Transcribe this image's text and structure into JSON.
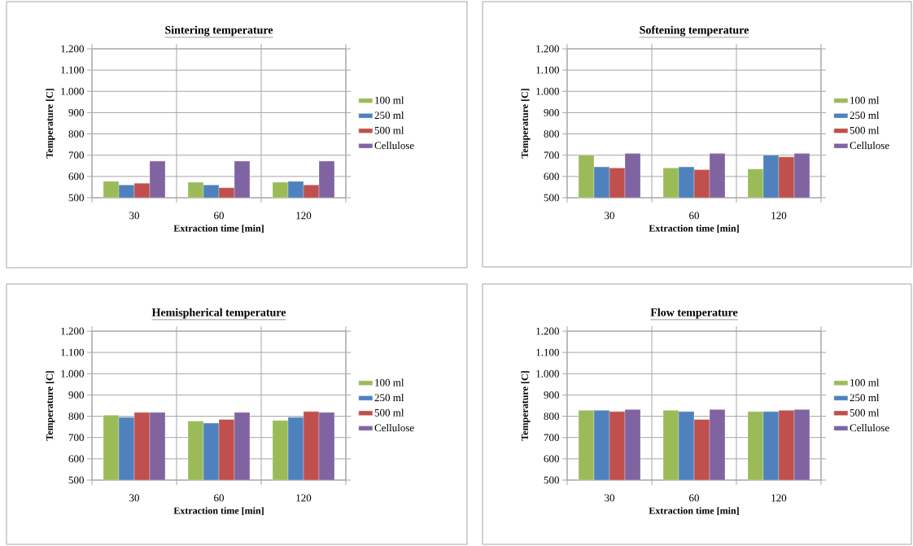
{
  "chart_data": [
    {
      "type": "bar",
      "title": "Sintering temperature",
      "xlabel": "Extraction time [min]",
      "ylabel": "Temperature [C]",
      "categories": [
        "30",
        "60",
        "120"
      ],
      "series": [
        {
          "name": "100 ml",
          "color": "#9bbb59",
          "values": [
            577,
            573,
            573
          ]
        },
        {
          "name": "250 ml",
          "color": "#4f81bd",
          "values": [
            560,
            560,
            577
          ]
        },
        {
          "name": "500 ml",
          "color": "#c0504d",
          "values": [
            568,
            547,
            560
          ]
        },
        {
          "name": "Cellulose",
          "color": "#8064a2",
          "values": [
            672,
            672,
            672
          ]
        }
      ],
      "ylim": [
        500,
        1200
      ],
      "yticks": [
        500,
        600,
        700,
        800,
        900,
        {
          "value": 1000,
          "label": "1.000"
        },
        {
          "value": 1100,
          "label": "1.100"
        },
        {
          "value": 1200,
          "label": "1.200"
        }
      ],
      "grid": true,
      "legend": "right"
    },
    {
      "type": "bar",
      "title": "Softening temperature",
      "xlabel": "Extraction time [min]",
      "ylabel": "Temperature [C]",
      "categories": [
        "30",
        "60",
        "120"
      ],
      "series": [
        {
          "name": "100 ml",
          "color": "#9bbb59",
          "values": [
            700,
            640,
            635
          ]
        },
        {
          "name": "250 ml",
          "color": "#4f81bd",
          "values": [
            645,
            645,
            700
          ]
        },
        {
          "name": "500 ml",
          "color": "#c0504d",
          "values": [
            640,
            632,
            692
          ]
        },
        {
          "name": "Cellulose",
          "color": "#8064a2",
          "values": [
            708,
            708,
            708
          ]
        }
      ],
      "ylim": [
        500,
        1200
      ],
      "yticks": [
        500,
        600,
        700,
        800,
        900,
        {
          "value": 1000,
          "label": "1.000"
        },
        {
          "value": 1100,
          "label": "1.100"
        },
        {
          "value": 1200,
          "label": "1.200"
        }
      ],
      "grid": true,
      "legend": "right"
    },
    {
      "type": "bar",
      "title": "Hemispherical temperature",
      "xlabel": "Extraction time [min]",
      "ylabel": "Temperature [C]",
      "categories": [
        "30",
        "60",
        "120"
      ],
      "series": [
        {
          "name": "100 ml",
          "color": "#9bbb59",
          "values": [
            805,
            777,
            780
          ]
        },
        {
          "name": "250 ml",
          "color": "#4f81bd",
          "values": [
            795,
            768,
            795
          ]
        },
        {
          "name": "500 ml",
          "color": "#c0504d",
          "values": [
            818,
            785,
            822
          ]
        },
        {
          "name": "Cellulose",
          "color": "#8064a2",
          "values": [
            818,
            818,
            818
          ]
        }
      ],
      "ylim": [
        500,
        1200
      ],
      "yticks": [
        500,
        600,
        700,
        800,
        900,
        {
          "value": 1000,
          "label": "1.000"
        },
        {
          "value": 1100,
          "label": "1.100"
        },
        {
          "value": 1200,
          "label": "1.200"
        }
      ],
      "grid": true,
      "legend": "right"
    },
    {
      "type": "bar",
      "title": "Flow temperature",
      "xlabel": "Extraction time [min]",
      "ylabel": "Temperature [C]",
      "categories": [
        "30",
        "60",
        "120"
      ],
      "series": [
        {
          "name": "100 ml",
          "color": "#9bbb59",
          "values": [
            828,
            828,
            822
          ]
        },
        {
          "name": "250 ml",
          "color": "#4f81bd",
          "values": [
            828,
            822,
            822
          ]
        },
        {
          "name": "500 ml",
          "color": "#c0504d",
          "values": [
            822,
            785,
            828
          ]
        },
        {
          "name": "Cellulose",
          "color": "#8064a2",
          "values": [
            832,
            832,
            832
          ]
        }
      ],
      "ylim": [
        500,
        1200
      ],
      "yticks": [
        500,
        600,
        700,
        800,
        900,
        {
          "value": 1000,
          "label": "1.000"
        },
        {
          "value": 1100,
          "label": "1.100"
        },
        {
          "value": 1200,
          "label": "1.200"
        }
      ],
      "grid": true,
      "legend": "right"
    }
  ]
}
